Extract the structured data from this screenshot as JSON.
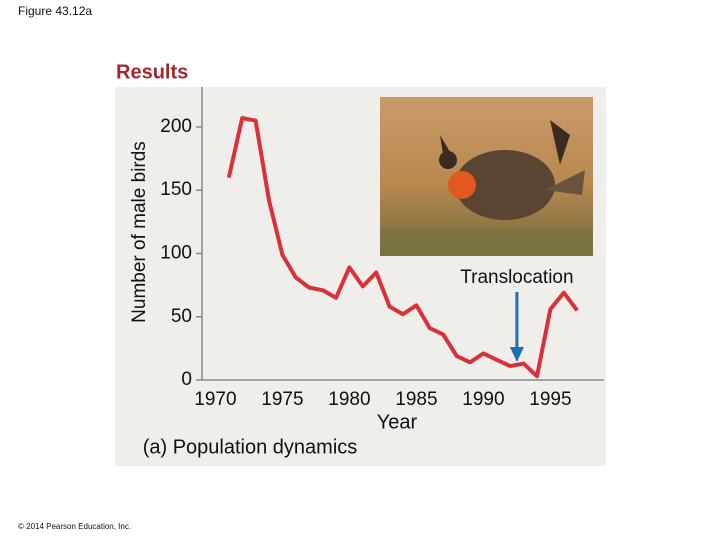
{
  "page": {
    "figure_label": "Figure 43.12a",
    "heading": "Results",
    "caption": "(a) Population dynamics",
    "copyright": "© 2014 Pearson Education, Inc."
  },
  "chart_data": {
    "type": "line",
    "x": [
      1971,
      1972,
      1973,
      1974,
      1975,
      1976,
      1977,
      1978,
      1979,
      1980,
      1981,
      1982,
      1983,
      1984,
      1985,
      1986,
      1987,
      1988,
      1989,
      1990,
      1991,
      1992,
      1993,
      1994,
      1995,
      1996,
      1997
    ],
    "values": [
      160,
      207,
      205,
      142,
      99,
      81,
      73,
      71,
      65,
      89,
      74,
      85,
      58,
      52,
      59,
      41,
      36,
      19,
      14,
      21,
      16,
      11,
      13,
      3,
      56,
      69,
      55
    ],
    "color": "#d9303a",
    "xlabel": "Year",
    "ylabel": "Number of male birds",
    "xlim": [
      1969,
      1999
    ],
    "ylim": [
      0,
      230
    ],
    "xticks": [
      1970,
      1975,
      1980,
      1985,
      1990,
      1995
    ],
    "yticks": [
      0,
      50,
      100,
      150,
      200
    ],
    "annotations": [
      {
        "text": "Translocation",
        "x": 1992.5,
        "color": "#1f6fb5"
      }
    ]
  }
}
